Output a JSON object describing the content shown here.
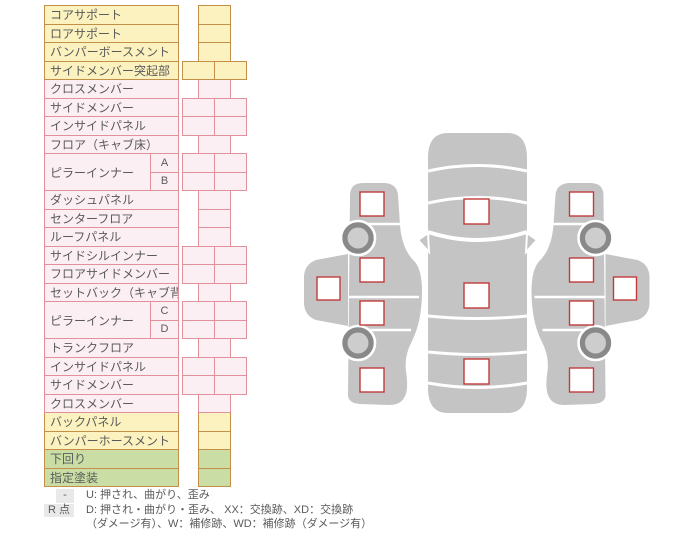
{
  "colors": {
    "yellow_fill": "#FBF2BF",
    "yellow_green_border": "#C49048",
    "pink_fill": "#FCEFF3",
    "pink_border": "#E0919B",
    "green_fill": "#C9DDA4",
    "text": "#5A5A5A",
    "badge_bg": "#E9E9E9",
    "car_body_gray": "#C4C4C4",
    "wheel_ring_gray": "#898989",
    "wheel_hub_gray": "#CDCDCD",
    "marker_border_red": "#C23B3B",
    "marker_fill": "#FFFFFF"
  },
  "parts_table": {
    "rows": [
      {
        "label": "コアサポート",
        "section": "yellow",
        "cells": 1
      },
      {
        "label": "ロアサポート",
        "section": "yellow",
        "cells": 1
      },
      {
        "label": "バンパーボースメント",
        "section": "yellow",
        "cells": 1
      },
      {
        "label": "サイドメンバー突起部",
        "section": "yellow",
        "cells": 2
      },
      {
        "label": "クロスメンバー",
        "section": "pink",
        "cells": 1
      },
      {
        "label": "サイドメンバー",
        "section": "pink",
        "cells": 2
      },
      {
        "label": "インサイドパネル",
        "section": "pink",
        "cells": 2
      },
      {
        "label": "フロア（キャブ床）",
        "section": "pink",
        "cells": 1
      },
      {
        "label": "ピラーインナー",
        "sublabel": "A",
        "section": "pink",
        "cells": 2
      },
      {
        "sublabel": "B",
        "section": "pink",
        "cells": 2
      },
      {
        "label": "ダッシュパネル",
        "section": "pink",
        "cells": 1
      },
      {
        "label": "センターフロア",
        "section": "pink",
        "cells": 1
      },
      {
        "label": "ルーフパネル",
        "section": "pink",
        "cells": 1
      },
      {
        "label": "サイドシルインナー",
        "section": "pink",
        "cells": 2
      },
      {
        "label": "フロアサイドメンバー",
        "section": "pink",
        "cells": 2
      },
      {
        "label": "セットバック（キャブ背）",
        "section": "pink",
        "cells": 1
      },
      {
        "label": "ピラーインナー",
        "sublabel": "C",
        "section": "pink",
        "cells": 2
      },
      {
        "sublabel": "D",
        "section": "pink",
        "cells": 2
      },
      {
        "label": "トランクフロア",
        "section": "pink",
        "cells": 1
      },
      {
        "label": "インサイドパネル",
        "section": "pink",
        "cells": 2
      },
      {
        "label": "サイドメンバー",
        "section": "pink",
        "cells": 2
      },
      {
        "label": "クロスメンバー",
        "section": "pink",
        "cells": 1
      },
      {
        "label": "バックパネル",
        "section": "yellow",
        "cells": 1
      },
      {
        "label": "バンパーホースメント",
        "section": "yellow",
        "cells": 1
      },
      {
        "label": "下回り",
        "section": "green",
        "cells": 1
      },
      {
        "label": "指定塗装",
        "section": "green",
        "cells": 1
      }
    ]
  },
  "legend": {
    "rows": [
      {
        "badge": "-",
        "text": "U: 押され、曲がり、歪み"
      },
      {
        "badge": "R 点",
        "text": "D: 押され・曲がり・歪み、 XX：交換跡、XD：交換跡"
      },
      {
        "badge": "",
        "text": "（ダメージ有）、W：補修跡、WD：補修跡（ダメージ有）"
      }
    ]
  },
  "diagram": {
    "views": [
      "left-side-view",
      "top-view",
      "right-side-view"
    ],
    "marker_count": 13
  }
}
